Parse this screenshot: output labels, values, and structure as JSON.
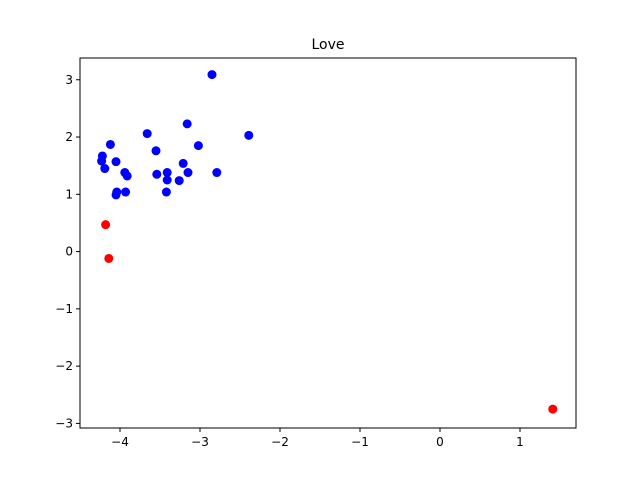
{
  "chart_data": {
    "type": "scatter",
    "title": "Love",
    "xlabel": "",
    "ylabel": "",
    "xlim": [
      -4.5,
      1.7
    ],
    "ylim": [
      -3.08,
      3.38
    ],
    "xticks": [
      -4,
      -3,
      -2,
      -1,
      0,
      1
    ],
    "yticks": [
      -3,
      -2,
      -1,
      0,
      1,
      2,
      3
    ],
    "xtick_labels": [
      "−4",
      "−3",
      "−2",
      "−1",
      "0",
      "1"
    ],
    "ytick_labels": [
      "−3",
      "−2",
      "−1",
      "0",
      "1",
      "2",
      "3"
    ],
    "grid": false,
    "legend": "none",
    "series": [
      {
        "color": "#0000ff",
        "points": [
          [
            -4.22,
            1.67
          ],
          [
            -4.23,
            1.58
          ],
          [
            -4.19,
            1.45
          ],
          [
            -4.12,
            1.87
          ],
          [
            -4.05,
            1.57
          ],
          [
            -4.04,
            1.04
          ],
          [
            -4.05,
            0.99
          ],
          [
            -3.94,
            1.38
          ],
          [
            -3.91,
            1.32
          ],
          [
            -3.93,
            1.04
          ],
          [
            -3.66,
            2.06
          ],
          [
            -3.55,
            1.76
          ],
          [
            -3.54,
            1.35
          ],
          [
            -3.41,
            1.38
          ],
          [
            -3.41,
            1.25
          ],
          [
            -3.42,
            1.04
          ],
          [
            -3.26,
            1.24
          ],
          [
            -3.21,
            1.54
          ],
          [
            -3.16,
            2.23
          ],
          [
            -3.15,
            1.38
          ],
          [
            -3.02,
            1.85
          ],
          [
            -2.85,
            3.09
          ],
          [
            -2.79,
            1.38
          ],
          [
            -2.39,
            2.03
          ]
        ]
      },
      {
        "color": "#ff0000",
        "points": [
          [
            -4.18,
            0.47
          ],
          [
            -4.14,
            -0.12
          ],
          [
            1.41,
            -2.75
          ]
        ]
      }
    ]
  }
}
